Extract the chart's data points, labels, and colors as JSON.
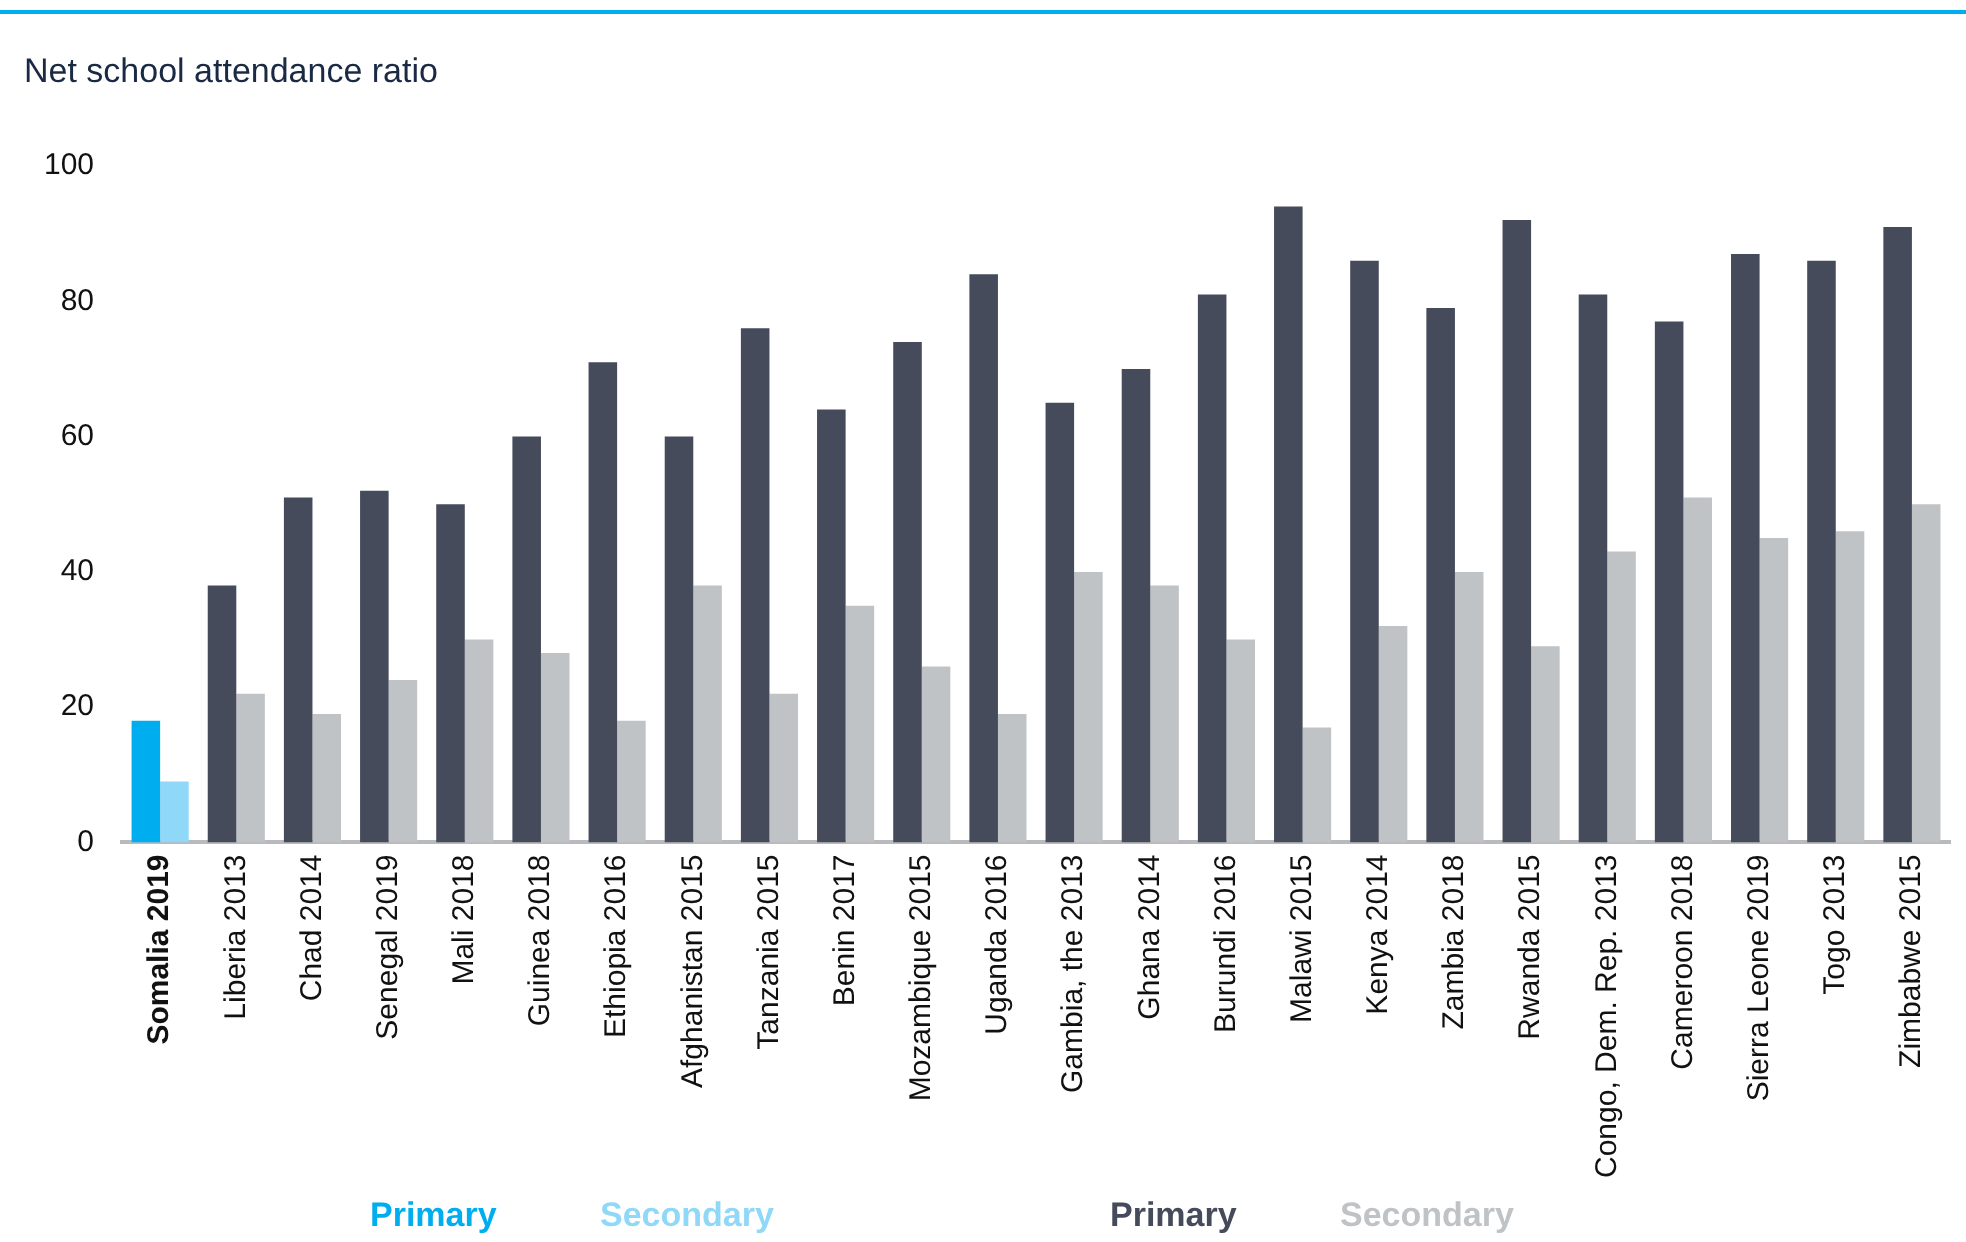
{
  "chart_data": {
    "type": "bar",
    "title": "Net school attendance ratio",
    "categories": [
      "Somalia 2019",
      "Liberia 2013",
      "Chad 2014",
      "Senegal 2019",
      "Mali 2018",
      "Guinea 2018",
      "Ethiopia 2016",
      "Afghanistan 2015",
      "Tanzania 2015",
      "Benin 2017",
      "Mozambique 2015",
      "Uganda 2016",
      "Gambia, the 2013",
      "Ghana 2014",
      "Burundi 2016",
      "Malawi 2015",
      "Kenya 2014",
      "Zambia 2018",
      "Rwanda 2015",
      "Congo, Dem. Rep. 2013",
      "Cameroon 2018",
      "Sierra Leone 2019",
      "Togo 2013",
      "Zimbabwe 2015"
    ],
    "series": [
      {
        "name": "Primary",
        "color": "#00aeef",
        "values": [
          18,
          null,
          null,
          null,
          null,
          null,
          null,
          null,
          null,
          null,
          null,
          null,
          null,
          null,
          null,
          null,
          null,
          null,
          null,
          null,
          null,
          null,
          null,
          null
        ]
      },
      {
        "name": "Secondary",
        "color": "#8fd8f8",
        "values": [
          9,
          null,
          null,
          null,
          null,
          null,
          null,
          null,
          null,
          null,
          null,
          null,
          null,
          null,
          null,
          null,
          null,
          null,
          null,
          null,
          null,
          null,
          null,
          null
        ]
      },
      {
        "name": "Primary",
        "color": "#454b5a",
        "values": [
          null,
          38,
          51,
          52,
          50,
          60,
          71,
          60,
          76,
          64,
          74,
          84,
          65,
          70,
          81,
          94,
          86,
          79,
          92,
          81,
          77,
          87,
          86,
          91
        ]
      },
      {
        "name": "Secondary",
        "color": "#c0c3c6",
        "values": [
          null,
          22,
          19,
          24,
          30,
          28,
          18,
          38,
          22,
          35,
          26,
          19,
          40,
          38,
          30,
          17,
          32,
          40,
          29,
          43,
          51,
          45,
          46,
          50
        ]
      }
    ],
    "ylim": [
      0,
      100
    ],
    "yticks": [
      0,
      20,
      40,
      60,
      80,
      100
    ],
    "grid": false,
    "legend": "bottom"
  }
}
